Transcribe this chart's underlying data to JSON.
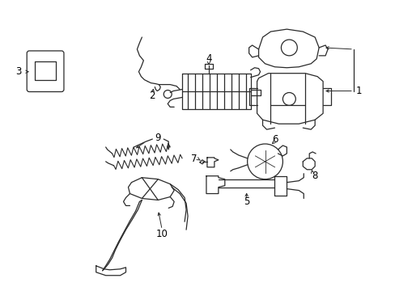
{
  "bg_color": "#ffffff",
  "line_color": "#2a2a2a",
  "fig_width": 4.89,
  "fig_height": 3.6,
  "dpi": 100,
  "parts": {
    "label_fontsize": 8.5
  }
}
